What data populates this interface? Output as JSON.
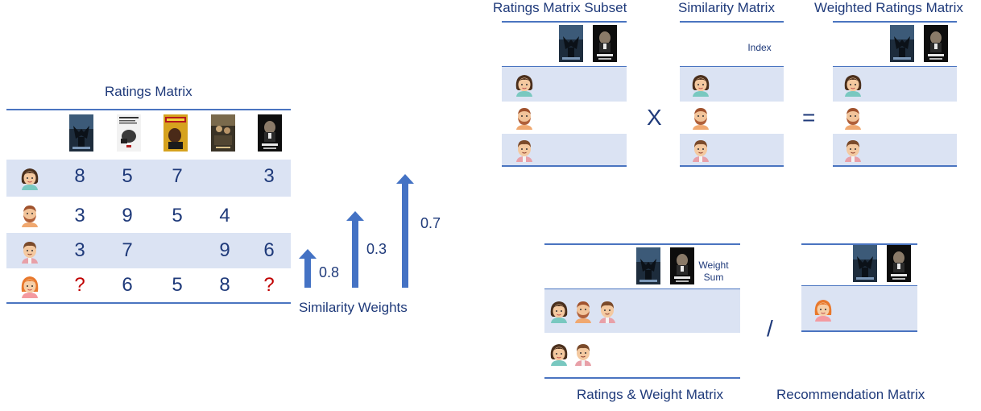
{
  "ratings_matrix": {
    "title": "Ratings Matrix",
    "rows": [
      [
        "8",
        "5",
        "7",
        "",
        "3"
      ],
      [
        "3",
        "9",
        "5",
        "4",
        ""
      ],
      [
        "3",
        "7",
        "",
        "9",
        "6"
      ],
      [
        "?",
        "6",
        "5",
        "8",
        "?"
      ]
    ]
  },
  "similarity_weights": {
    "label": "Similarity Weights",
    "values": [
      "0.8",
      "0.3",
      "0.7"
    ]
  },
  "subset": {
    "title": "Ratings Matrix Subset"
  },
  "similarity_matrix": {
    "title": "Similarity Matrix",
    "index_label": "Index"
  },
  "weighted_matrix": {
    "title": "Weighted Ratings Matrix"
  },
  "operators": {
    "multiply": "X",
    "equals": "=",
    "divide": "/"
  },
  "ratings_weight_matrix": {
    "title": "Ratings & Weight Matrix",
    "weight_sum_line1": "Weight",
    "weight_sum_line2": "Sum"
  },
  "recommendation_matrix": {
    "title": "Recommendation Matrix"
  },
  "colors": {
    "text": "#1f3a7a",
    "band": "#dbe3f3",
    "line": "#4a74c0",
    "arrow": "#4472c4",
    "question": "#c00000"
  },
  "icons": [
    "poster-batman-icon",
    "poster-film2-icon",
    "poster-pulp-fiction-icon",
    "poster-lotr-icon",
    "poster-godfather-icon",
    "avatar-woman-dark-icon",
    "avatar-man-beard-icon",
    "avatar-man-icon",
    "avatar-woman-red-icon"
  ]
}
